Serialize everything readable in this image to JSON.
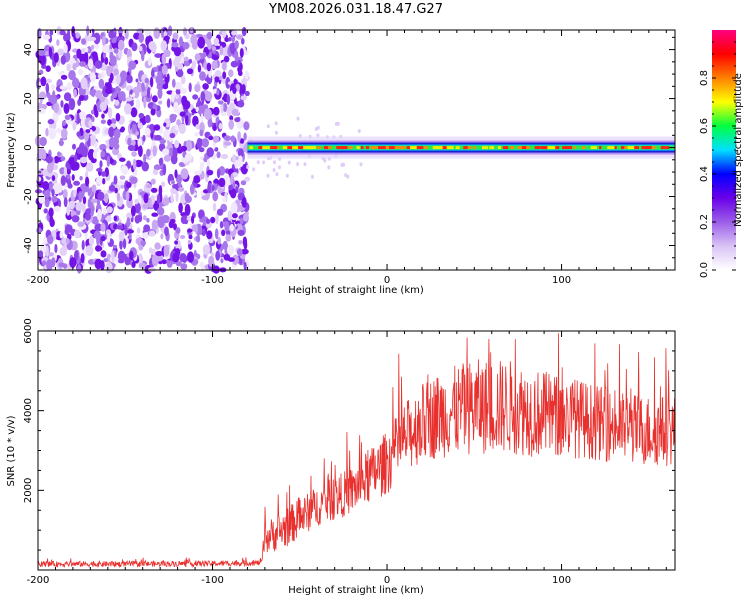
{
  "title": "YM08.2026.031.18.47.G27",
  "chart_data": [
    {
      "type": "heatmap",
      "xlabel": "Height of straight line (km)",
      "ylabel": "Frequency (Hz)",
      "xlim": [
        -200,
        165
      ],
      "ylim": [
        -50,
        48
      ],
      "xticks": [
        -200,
        -100,
        0,
        100
      ],
      "yticks": [
        -40,
        -20,
        0,
        20,
        40
      ],
      "noise_region_x": [
        -200,
        -80
      ],
      "carrier_start_x": -80,
      "carrier_frequency": 0,
      "colorbar": {
        "label": "Normalized spectral amplitude",
        "range": [
          0.0,
          1.0
        ],
        "ticks": [
          0.0,
          0.2,
          0.4,
          0.6,
          0.8
        ],
        "tick_labels": [
          "0.0",
          "0.2",
          "0.4",
          "0.6",
          "0.8"
        ],
        "colors": [
          "#ffffff",
          "#d9c2f5",
          "#9b5ee8",
          "#6a00e8",
          "#0000ff",
          "#00e0ff",
          "#00ff40",
          "#ffff00",
          "#ff8000",
          "#ff0000",
          "#ff0080"
        ]
      }
    },
    {
      "type": "line",
      "xlabel": "Height of straight line (km)",
      "ylabel": "SNR (10 * v/v)",
      "xlim": [
        -200,
        165
      ],
      "ylim": [
        0,
        6000
      ],
      "xticks": [
        -200,
        -100,
        0,
        100
      ],
      "yticks": [
        2000,
        4000,
        6000
      ],
      "color": "#e8312e",
      "envelope": {
        "x": [
          -200,
          -150,
          -100,
          -72,
          -70,
          -60,
          -40,
          -20,
          0,
          10,
          20,
          30,
          50,
          70,
          90,
          110,
          130,
          150,
          165
        ],
        "mean": [
          150,
          150,
          160,
          180,
          800,
          1000,
          1600,
          2000,
          2700,
          3300,
          3700,
          3900,
          4100,
          4100,
          3900,
          3800,
          3600,
          3500,
          3500
        ],
        "spread": [
          70,
          70,
          70,
          70,
          400,
          500,
          500,
          600,
          800,
          900,
          1000,
          1100,
          1200,
          1200,
          1100,
          1000,
          900,
          900,
          900
        ]
      }
    }
  ]
}
